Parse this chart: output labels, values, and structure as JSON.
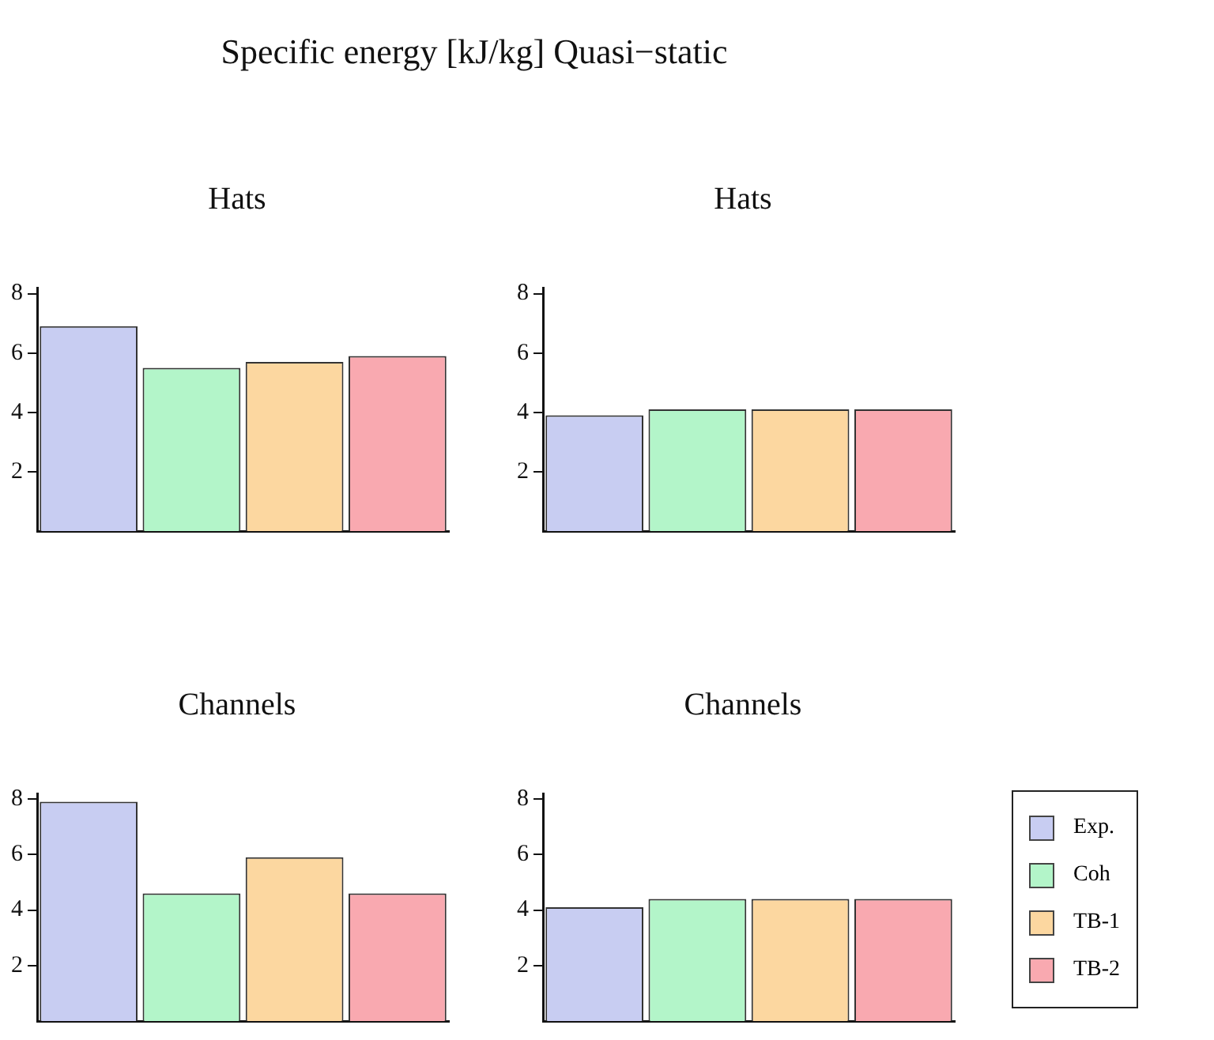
{
  "chart_data": [
    {
      "type": "bar",
      "title": "Specific energy [kJ/kg] Quasi−static",
      "subtitle": "Hats",
      "categories": [
        null
      ],
      "series": [
        {
          "color": "#c8cdf2",
          "values": [
            6.9
          ]
        },
        {
          "color": "#b3f5c9",
          "values": [
            5.5
          ]
        },
        {
          "color": "#fcd7a0",
          "values": [
            5.7
          ]
        },
        {
          "color": "#f9a9b0",
          "values": [
            5.9
          ]
        }
      ],
      "ylim": [
        0,
        8.2
      ],
      "yticks": [
        2,
        4,
        6,
        8
      ],
      "tick_labels": "y",
      "grid": false,
      "legend": false
    },
    {
      "type": "bar",
      "subtitle": "Hats",
      "categories": [
        null
      ],
      "series": [
        {
          "color": "#c8cdf2",
          "values": [
            3.9
          ]
        },
        {
          "color": "#b3f5c9",
          "values": [
            4.1
          ]
        },
        {
          "color": "#fcd7a0",
          "values": [
            4.1
          ]
        },
        {
          "color": "#f9a9b0",
          "values": [
            4.1
          ]
        }
      ],
      "ylim": [
        0,
        8.2
      ],
      "yticks": [
        2,
        4,
        6,
        8
      ],
      "tick_labels": "y",
      "grid": false,
      "legend": false
    },
    {
      "type": "bar",
      "subtitle": "Channels",
      "categories": [
        null
      ],
      "series": [
        {
          "color": "#c8cdf2",
          "values": [
            7.9
          ]
        },
        {
          "color": "#b3f5c9",
          "values": [
            4.6
          ]
        },
        {
          "color": "#fcd7a0",
          "values": [
            5.9
          ]
        },
        {
          "color": "#f9a9b0",
          "values": [
            4.6
          ]
        }
      ],
      "ylim": [
        0,
        8.2
      ],
      "yticks": [
        2,
        4,
        6,
        8
      ],
      "tick_labels": "y",
      "grid": false,
      "legend": false
    },
    {
      "type": "bar",
      "subtitle": "Channels",
      "categories": [
        null
      ],
      "series": [
        {
          "name": "Exp.",
          "color": "#c8cdf2",
          "values": [
            4.1
          ]
        },
        {
          "name": "Coh",
          "color": "#b3f5c9",
          "values": [
            4.4
          ]
        },
        {
          "name": "TB-1",
          "color": "#fcd7a0",
          "values": [
            4.4
          ]
        },
        {
          "name": "TB-2",
          "color": "#f9a9b0",
          "values": [
            4.4
          ]
        }
      ],
      "ylim": [
        0,
        8.2
      ],
      "yticks": [
        2,
        4,
        6,
        8
      ],
      "tick_labels": "y",
      "grid": false,
      "legend": "right"
    }
  ]
}
